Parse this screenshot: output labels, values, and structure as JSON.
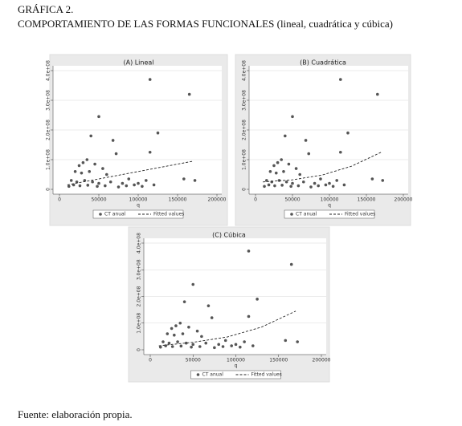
{
  "header": {
    "title": "GRÁFICA 2.",
    "subtitle": "COMPORTAMIENTO DE LAS FORMAS FUNCIONALES (lineal, cuadrática y cúbica)"
  },
  "chart_data": [
    {
      "type": "scatter",
      "title": "(A) Lineal",
      "x_label": "q",
      "xlim": [
        0,
        200000
      ],
      "xticks": [
        0,
        50000,
        100000,
        150000,
        200000
      ],
      "ylim": [
        0,
        400000000
      ],
      "yticks": [
        0,
        {
          "value": 100000000,
          "label": "1.0e+08"
        },
        {
          "value": 200000000,
          "label": "2.0e+08"
        },
        {
          "value": 300000000,
          "label": "3.0e+08"
        },
        {
          "value": 400000000,
          "label": "4.0e+08"
        }
      ],
      "grid": true,
      "series": [
        {
          "name": "CT anual",
          "color": "#555555",
          "x": [
            115000,
            165000,
            50000,
            125000,
            68000,
            72000,
            115000,
            40000,
            35000,
            30000,
            25000,
            45000,
            55000,
            20000,
            28000,
            38000,
            60000,
            15000,
            22000,
            32000,
            42000,
            50000,
            65000,
            80000,
            95000,
            100000,
            110000,
            158000,
            172000,
            12000,
            18000,
            26000,
            36000,
            48000,
            58000,
            75000,
            85000,
            105000,
            120000,
            88000
          ],
          "values": [
            370000000,
            320000000,
            245000000,
            190000000,
            165000000,
            120000000,
            125000000,
            180000000,
            100000000,
            90000000,
            80000000,
            85000000,
            70000000,
            60000000,
            55000000,
            60000000,
            50000000,
            30000000,
            25000000,
            30000000,
            25000000,
            20000000,
            25000000,
            20000000,
            15000000,
            20000000,
            30000000,
            35000000,
            30000000,
            10000000,
            15000000,
            12000000,
            14000000,
            10000000,
            12000000,
            8000000,
            12000000,
            10000000,
            15000000,
            35000000
          ]
        },
        {
          "name": "Fitted values",
          "type": "line",
          "dashed": true,
          "color": "#222222",
          "x": [
            10000,
            50000,
            90000,
            130000,
            170000
          ],
          "values": [
            15000000,
            35000000,
            55000000,
            75000000,
            95000000
          ]
        }
      ]
    },
    {
      "type": "scatter",
      "title": "(B) Cuadrática",
      "x_label": "q",
      "xlim": [
        0,
        200000
      ],
      "xticks": [
        0,
        50000,
        100000,
        150000,
        200000
      ],
      "ylim": [
        0,
        400000000
      ],
      "yticks": [
        0,
        {
          "value": 100000000,
          "label": "1.0e+08"
        },
        {
          "value": 200000000,
          "label": "2.0e+08"
        },
        {
          "value": 300000000,
          "label": "3.0e+08"
        },
        {
          "value": 400000000,
          "label": "4.0e+08"
        }
      ],
      "grid": true,
      "series": [
        {
          "name": "CT anual",
          "color": "#555555",
          "x": [
            115000,
            165000,
            50000,
            125000,
            68000,
            72000,
            115000,
            40000,
            35000,
            30000,
            25000,
            45000,
            55000,
            20000,
            28000,
            38000,
            60000,
            15000,
            22000,
            32000,
            42000,
            50000,
            65000,
            80000,
            95000,
            100000,
            110000,
            158000,
            172000,
            12000,
            18000,
            26000,
            36000,
            48000,
            58000,
            75000,
            85000,
            105000,
            120000,
            88000
          ],
          "values": [
            370000000,
            320000000,
            245000000,
            190000000,
            165000000,
            120000000,
            125000000,
            180000000,
            100000000,
            90000000,
            80000000,
            85000000,
            70000000,
            60000000,
            55000000,
            60000000,
            50000000,
            30000000,
            25000000,
            30000000,
            25000000,
            20000000,
            25000000,
            20000000,
            15000000,
            20000000,
            30000000,
            35000000,
            30000000,
            10000000,
            15000000,
            12000000,
            14000000,
            10000000,
            12000000,
            8000000,
            12000000,
            10000000,
            15000000,
            35000000
          ]
        },
        {
          "name": "Fitted values",
          "type": "line",
          "dashed": true,
          "color": "#222222",
          "x": [
            10000,
            50000,
            90000,
            130000,
            170000
          ],
          "values": [
            25000000,
            32000000,
            48000000,
            78000000,
            125000000
          ]
        }
      ]
    },
    {
      "type": "scatter",
      "title": "(C) Cúbica",
      "x_label": "q",
      "xlim": [
        0,
        200000
      ],
      "xticks": [
        0,
        50000,
        100000,
        150000,
        200000
      ],
      "ylim": [
        0,
        400000000
      ],
      "yticks": [
        0,
        {
          "value": 100000000,
          "label": "1.0e+08"
        },
        {
          "value": 200000000,
          "label": "2.0e+08"
        },
        {
          "value": 300000000,
          "label": "3.0e+08"
        },
        {
          "value": 400000000,
          "label": "4.0e+08"
        }
      ],
      "grid": true,
      "series": [
        {
          "name": "CT anual",
          "color": "#555555",
          "x": [
            115000,
            165000,
            50000,
            125000,
            68000,
            72000,
            115000,
            40000,
            35000,
            30000,
            25000,
            45000,
            55000,
            20000,
            28000,
            38000,
            60000,
            15000,
            22000,
            32000,
            42000,
            50000,
            65000,
            80000,
            95000,
            100000,
            110000,
            158000,
            172000,
            12000,
            18000,
            26000,
            36000,
            48000,
            58000,
            75000,
            85000,
            105000,
            120000,
            88000
          ],
          "values": [
            370000000,
            320000000,
            245000000,
            190000000,
            165000000,
            120000000,
            125000000,
            180000000,
            100000000,
            90000000,
            80000000,
            85000000,
            70000000,
            60000000,
            55000000,
            60000000,
            50000000,
            30000000,
            25000000,
            30000000,
            25000000,
            20000000,
            25000000,
            20000000,
            15000000,
            20000000,
            30000000,
            35000000,
            30000000,
            10000000,
            15000000,
            12000000,
            14000000,
            10000000,
            12000000,
            8000000,
            12000000,
            10000000,
            15000000,
            35000000
          ]
        },
        {
          "name": "Fitted values",
          "type": "line",
          "dashed": true,
          "color": "#222222",
          "x": [
            10000,
            50000,
            90000,
            130000,
            170000
          ],
          "values": [
            15000000,
            28000000,
            48000000,
            85000000,
            145000000
          ]
        }
      ]
    }
  ],
  "footer": "Fuente: elaboración propia."
}
